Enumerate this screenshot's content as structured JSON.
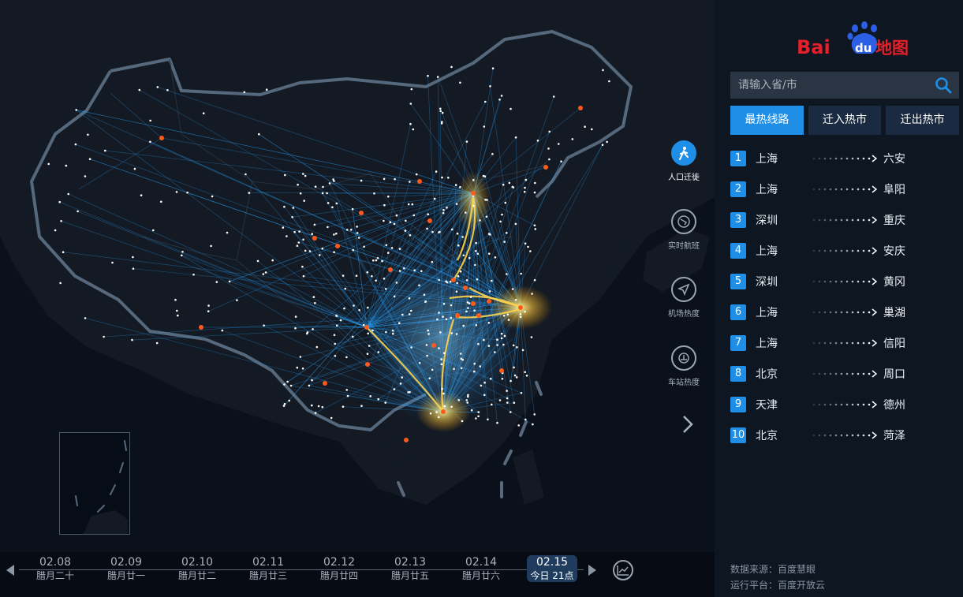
{
  "brand": {
    "logo_text_latin": "Bai",
    "logo_text_du": "du",
    "logo_text_cn": "地图"
  },
  "search": {
    "placeholder": "请输入省/市"
  },
  "tabs": [
    {
      "label": "最热线路",
      "active": true
    },
    {
      "label": "迁入热市",
      "active": false
    },
    {
      "label": "迁出热市",
      "active": false
    }
  ],
  "routes": [
    {
      "rank": "1",
      "from": "上海",
      "to": "六安"
    },
    {
      "rank": "2",
      "from": "上海",
      "to": "阜阳"
    },
    {
      "rank": "3",
      "from": "深圳",
      "to": "重庆"
    },
    {
      "rank": "4",
      "from": "上海",
      "to": "安庆"
    },
    {
      "rank": "5",
      "from": "深圳",
      "to": "黄冈"
    },
    {
      "rank": "6",
      "from": "上海",
      "to": "巢湖"
    },
    {
      "rank": "7",
      "from": "上海",
      "to": "信阳"
    },
    {
      "rank": "8",
      "from": "北京",
      "to": "周口"
    },
    {
      "rank": "9",
      "from": "天津",
      "to": "德州"
    },
    {
      "rank": "10",
      "from": "北京",
      "to": "菏泽"
    }
  ],
  "tools": [
    {
      "label": "人口迁徙",
      "icon": "walking-person-icon",
      "active": true
    },
    {
      "label": "实时航班",
      "icon": "flight-radar-icon",
      "active": false
    },
    {
      "label": "机场热度",
      "icon": "airplane-icon",
      "active": false
    },
    {
      "label": "车站热度",
      "icon": "train-icon",
      "active": false
    }
  ],
  "footer": {
    "source": "数据来源：百度慧眼",
    "platform": "运行平台：百度开放云"
  },
  "timeline": [
    {
      "date": "02.08",
      "lunar": "腊月二十"
    },
    {
      "date": "02.09",
      "lunar": "腊月廿一"
    },
    {
      "date": "02.10",
      "lunar": "腊月廿二"
    },
    {
      "date": "02.11",
      "lunar": "腊月廿三"
    },
    {
      "date": "02.12",
      "lunar": "腊月廿四"
    },
    {
      "date": "02.13",
      "lunar": "腊月廿五"
    },
    {
      "date": "02.14",
      "lunar": "腊月廿六"
    },
    {
      "date": "02.15",
      "lunar": "今日 21点",
      "active": true
    }
  ],
  "colors": {
    "accent": "#1f8ee6",
    "hot_route": "#ffd24a",
    "flow": "#2aa6ff",
    "city_hub": "#ff5a1a"
  }
}
